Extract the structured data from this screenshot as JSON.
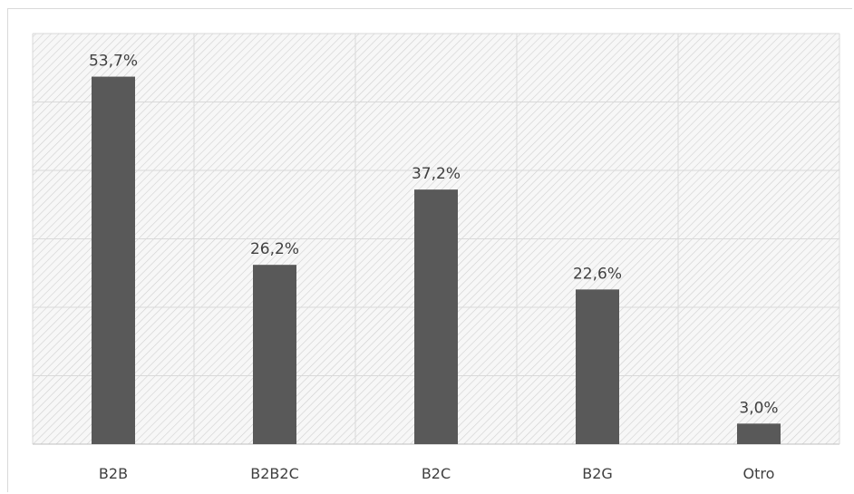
{
  "chart_data": {
    "type": "bar",
    "categories": [
      "B2B",
      "B2B2C",
      "B2C",
      "B2G",
      "Otro"
    ],
    "values": [
      53.7,
      26.2,
      37.2,
      22.6,
      3.0
    ],
    "data_labels": [
      "53,7%",
      "26,2%",
      "37,2%",
      "22,6%",
      "3,0%"
    ],
    "ylim": [
      0,
      60
    ],
    "grid": true,
    "bar_color": "#595959",
    "title": "",
    "xlabel": "",
    "ylabel": ""
  }
}
